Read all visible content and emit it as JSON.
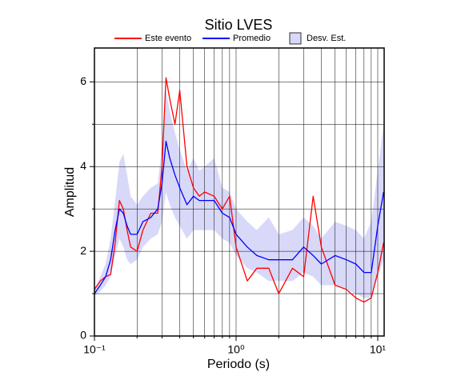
{
  "chart_data": {
    "type": "line",
    "title": "Sitio LVES",
    "x_label": "Periodo (s)",
    "y_label": "Amplitud",
    "x_log": true,
    "grid": true,
    "xlim": [
      0.1,
      11.1
    ],
    "ylim": [
      0,
      6.8
    ],
    "xticks": [
      {
        "value": 0.1,
        "label": "10⁻¹"
      },
      {
        "value": 1,
        "label": "10⁰"
      },
      {
        "value": 10,
        "label": "10¹"
      }
    ],
    "x_minor_ticks": [
      0.2,
      0.3,
      0.4,
      0.5,
      0.6,
      0.7,
      0.8,
      0.9,
      2,
      3,
      4,
      5,
      6,
      7,
      8,
      9
    ],
    "yticks": [
      0,
      2,
      4,
      6
    ],
    "y_minor_ticks": [
      1,
      3,
      5
    ],
    "legend": "top",
    "x": [
      0.1,
      0.11,
      0.12,
      0.13,
      0.14,
      0.15,
      0.16,
      0.17,
      0.18,
      0.2,
      0.22,
      0.25,
      0.28,
      0.3,
      0.32,
      0.34,
      0.37,
      0.4,
      0.45,
      0.5,
      0.55,
      0.6,
      0.7,
      0.8,
      0.9,
      1.0,
      1.2,
      1.4,
      1.7,
      2.0,
      2.5,
      3.0,
      3.5,
      4.0,
      5.0,
      6.0,
      7.0,
      8.0,
      9.0,
      10.0,
      11.0
    ],
    "series": [
      {
        "name": "Este evento",
        "color": "#ff0000",
        "values": [
          1.1,
          1.3,
          1.4,
          1.45,
          2.2,
          3.2,
          3.0,
          2.5,
          2.1,
          2.0,
          2.5,
          2.9,
          2.9,
          4.0,
          6.1,
          5.6,
          5.0,
          5.8,
          4.0,
          3.5,
          3.3,
          3.4,
          3.3,
          3.0,
          3.3,
          2.1,
          1.3,
          1.6,
          1.6,
          1.0,
          1.6,
          1.4,
          3.3,
          2.1,
          1.2,
          1.1,
          0.9,
          0.8,
          0.9,
          1.5,
          2.2
        ]
      },
      {
        "name": "Promedio",
        "color": "#0000ff",
        "values": [
          1.0,
          1.2,
          1.4,
          1.8,
          2.5,
          3.0,
          2.9,
          2.6,
          2.4,
          2.4,
          2.7,
          2.8,
          3.0,
          3.6,
          4.6,
          4.2,
          3.8,
          3.5,
          3.1,
          3.3,
          3.2,
          3.2,
          3.2,
          2.9,
          2.8,
          2.4,
          2.1,
          1.9,
          1.8,
          1.8,
          1.8,
          2.1,
          1.9,
          1.7,
          1.9,
          1.8,
          1.7,
          1.5,
          1.5,
          2.6,
          3.4
        ]
      },
      {
        "name": "Desv. Est.",
        "color": "#d8d8f8",
        "lower": [
          0.95,
          1.05,
          1.2,
          1.4,
          1.9,
          2.3,
          2.1,
          1.8,
          1.7,
          1.8,
          2.1,
          2.3,
          2.4,
          2.7,
          3.4,
          3.1,
          2.8,
          2.6,
          2.3,
          2.5,
          2.5,
          2.5,
          2.5,
          2.3,
          2.2,
          1.9,
          1.6,
          1.5,
          1.3,
          1.3,
          1.3,
          1.5,
          1.4,
          1.2,
          1.2,
          1.1,
          1.0,
          0.9,
          0.9,
          1.4,
          1.8
        ],
        "upper": [
          1.1,
          1.4,
          1.7,
          2.3,
          3.2,
          4.1,
          4.3,
          3.8,
          3.3,
          3.1,
          3.3,
          3.5,
          3.6,
          4.5,
          5.8,
          5.3,
          4.8,
          4.4,
          3.9,
          4.2,
          3.9,
          4.0,
          4.2,
          3.5,
          3.4,
          3.0,
          2.7,
          2.5,
          2.8,
          2.4,
          2.5,
          2.8,
          2.6,
          2.3,
          2.7,
          2.6,
          2.5,
          2.3,
          2.7,
          3.9,
          5.0
        ]
      }
    ]
  }
}
